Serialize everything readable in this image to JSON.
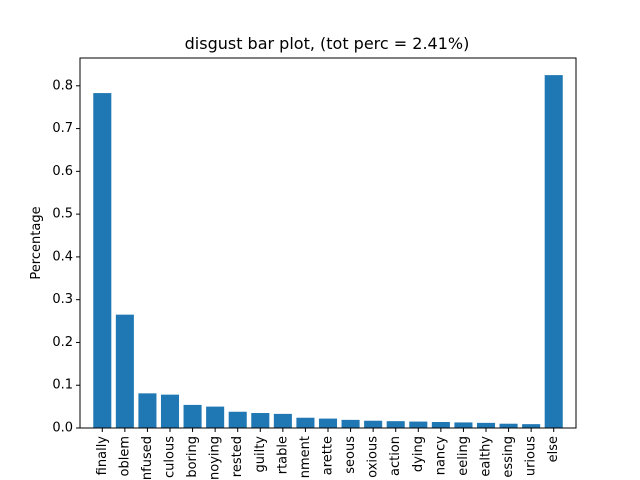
{
  "chart_data": {
    "type": "bar",
    "title": "disgust bar plot, (tot perc = 2.41%)",
    "xlabel": "",
    "ylabel": "Percentage",
    "ylim": [
      0,
      0.865
    ],
    "yticks": [
      "0.0",
      "0.1",
      "0.2",
      "0.3",
      "0.4",
      "0.5",
      "0.6",
      "0.7",
      "0.8"
    ],
    "color": "#1f77b4",
    "grid": false,
    "categories": [
      "finally",
      "oblem",
      "nfused",
      "culous",
      "boring",
      "noying",
      "rested",
      "guilty",
      "rtable",
      "nment",
      "arette",
      "seous",
      "oxious",
      "action",
      "dying",
      "nancy",
      "eeling",
      "ealthy",
      "essing",
      "urious",
      "else"
    ],
    "values": [
      0.783,
      0.265,
      0.081,
      0.078,
      0.054,
      0.05,
      0.038,
      0.035,
      0.033,
      0.024,
      0.022,
      0.019,
      0.017,
      0.016,
      0.015,
      0.014,
      0.013,
      0.012,
      0.01,
      0.009,
      0.825
    ]
  }
}
